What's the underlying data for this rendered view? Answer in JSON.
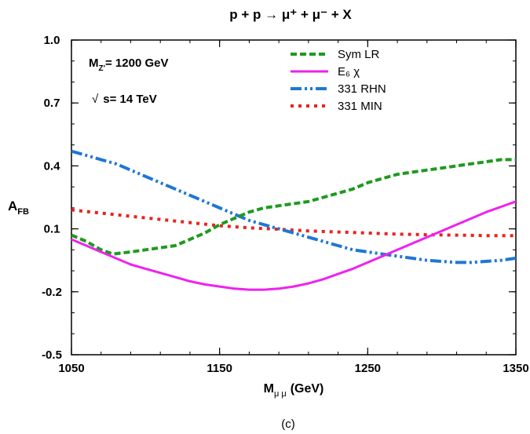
{
  "chart_data": {
    "type": "line",
    "title": "p + p → μ⁺ + μ⁻ + X",
    "xlabel": "M",
    "xlabel_sub": "μ μ",
    "xlabel_unit": "(GeV)",
    "ylabel": "A",
    "ylabel_sub": "FB",
    "xlim": [
      1050,
      1350
    ],
    "ylim": [
      -0.5,
      1.0
    ],
    "x_ticks": [
      "1050",
      "1150",
      "1250",
      "1350"
    ],
    "y_ticks": [
      "-0.5",
      "-0.2",
      "0.1",
      "0.4",
      "0.7",
      "1.0"
    ],
    "grid": false,
    "legend_position": "top-right",
    "annotations": {
      "mz_main": "M",
      "mz_sub": "Z'",
      "mz_value": "= 1200 GeV",
      "sqrt_symbol": "√",
      "energy_value": "s= 14 TeV"
    },
    "series": [
      {
        "name": "Sym LR",
        "color": "#1e9a1e",
        "dash": "dashed",
        "x": [
          1050,
          1060,
          1070,
          1078,
          1090,
          1100,
          1110,
          1120,
          1130,
          1140,
          1150,
          1160,
          1170,
          1180,
          1190,
          1200,
          1210,
          1220,
          1230,
          1240,
          1250,
          1260,
          1270,
          1280,
          1290,
          1300,
          1310,
          1320,
          1330,
          1340,
          1350
        ],
        "y": [
          0.07,
          0.04,
          0.0,
          -0.02,
          -0.01,
          0.0,
          0.01,
          0.02,
          0.05,
          0.08,
          0.12,
          0.15,
          0.18,
          0.2,
          0.21,
          0.22,
          0.23,
          0.25,
          0.27,
          0.29,
          0.32,
          0.34,
          0.36,
          0.37,
          0.38,
          0.39,
          0.4,
          0.41,
          0.42,
          0.43,
          0.43
        ]
      },
      {
        "name": "E₆ χ",
        "color": "#ee22ee",
        "dash": "solid",
        "x": [
          1050,
          1060,
          1070,
          1080,
          1090,
          1100,
          1110,
          1120,
          1130,
          1140,
          1150,
          1160,
          1170,
          1180,
          1190,
          1200,
          1210,
          1220,
          1230,
          1240,
          1250,
          1260,
          1270,
          1280,
          1290,
          1300,
          1310,
          1320,
          1330,
          1340,
          1350
        ],
        "y": [
          0.05,
          0.02,
          -0.01,
          -0.04,
          -0.07,
          -0.09,
          -0.11,
          -0.13,
          -0.15,
          -0.165,
          -0.175,
          -0.185,
          -0.19,
          -0.19,
          -0.185,
          -0.175,
          -0.16,
          -0.14,
          -0.115,
          -0.09,
          -0.06,
          -0.03,
          0.0,
          0.03,
          0.06,
          0.09,
          0.12,
          0.15,
          0.18,
          0.205,
          0.23
        ]
      },
      {
        "name": "331 RHN",
        "color": "#1f77d4",
        "dash": "dashdotdot",
        "x": [
          1050,
          1060,
          1070,
          1080,
          1090,
          1100,
          1110,
          1120,
          1130,
          1140,
          1150,
          1160,
          1170,
          1180,
          1190,
          1200,
          1210,
          1220,
          1230,
          1240,
          1250,
          1260,
          1270,
          1280,
          1290,
          1300,
          1310,
          1320,
          1330,
          1340,
          1350
        ],
        "y": [
          0.47,
          0.45,
          0.43,
          0.41,
          0.38,
          0.35,
          0.32,
          0.29,
          0.26,
          0.23,
          0.2,
          0.17,
          0.14,
          0.12,
          0.1,
          0.08,
          0.06,
          0.04,
          0.02,
          0.0,
          -0.01,
          -0.02,
          -0.03,
          -0.04,
          -0.05,
          -0.055,
          -0.06,
          -0.06,
          -0.055,
          -0.05,
          -0.04
        ]
      },
      {
        "name": "331 MIN",
        "color": "#e8231e",
        "dash": "dotted",
        "x": [
          1050,
          1070,
          1090,
          1110,
          1130,
          1150,
          1170,
          1190,
          1210,
          1230,
          1250,
          1270,
          1290,
          1310,
          1330,
          1350
        ],
        "y": [
          0.19,
          0.175,
          0.16,
          0.145,
          0.13,
          0.115,
          0.105,
          0.098,
          0.09,
          0.085,
          0.08,
          0.075,
          0.072,
          0.07,
          0.068,
          0.068
        ]
      }
    ]
  },
  "caption": "(c)"
}
